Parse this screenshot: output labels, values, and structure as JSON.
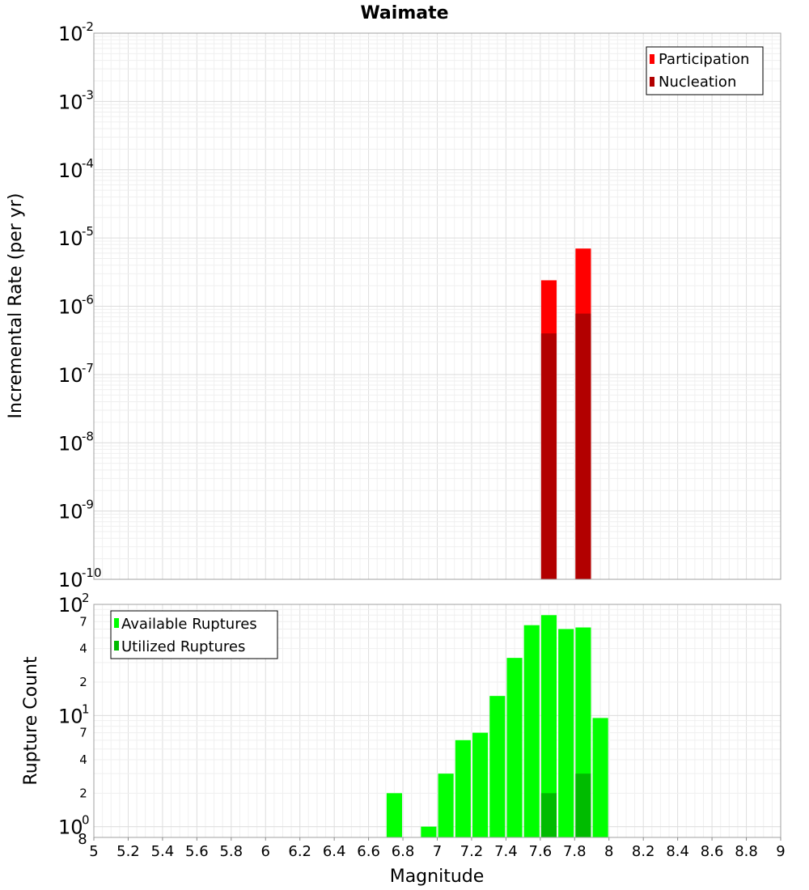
{
  "chart_data": [
    {
      "type": "bar",
      "title": "Waimate",
      "xlabel": "",
      "ylabel": "Incremental Rate (per yr)",
      "yscale": "log",
      "xlim": [
        5,
        9
      ],
      "ylim": [
        1e-10,
        0.01
      ],
      "y_tick_exponents": [
        "-2",
        "-3",
        "-4",
        "-5",
        "-6",
        "-7",
        "-8",
        "-9",
        "-10"
      ],
      "y_tick_base": "10",
      "legend_position": "top-right",
      "bar_width": 0.09,
      "series": [
        {
          "name": "Participation",
          "color": "#ff0000",
          "x": [
            7.65,
            7.85
          ],
          "values": [
            2.4e-06,
            7e-06
          ]
        },
        {
          "name": "Nucleation",
          "color": "#b20000",
          "x": [
            7.65,
            7.85
          ],
          "values": [
            4e-07,
            7.8e-07
          ]
        }
      ]
    },
    {
      "type": "bar",
      "title": "",
      "xlabel": "Magnitude",
      "ylabel": "Rupture Count",
      "yscale": "log",
      "xlim": [
        5,
        9
      ],
      "ylim": [
        0.8,
        100
      ],
      "x_ticks": [
        "5",
        "5.2",
        "5.4",
        "5.6",
        "5.8",
        "6",
        "6.2",
        "6.4",
        "6.6",
        "6.8",
        "7",
        "7.2",
        "7.4",
        "7.6",
        "7.8",
        "8",
        "8.2",
        "8.4",
        "8.6",
        "8.8",
        "9"
      ],
      "y_major_exponents": [
        "0",
        "1",
        "2"
      ],
      "y_tick_base": "10",
      "y_minor_labels": [
        "2",
        "4",
        "7",
        "2",
        "4",
        "7",
        "8"
      ],
      "legend_position": "top-left",
      "bar_width": 0.09,
      "series": [
        {
          "name": "Available Ruptures",
          "color": "#00ff00",
          "x": [
            6.75,
            6.95,
            7.05,
            7.15,
            7.25,
            7.35,
            7.45,
            7.55,
            7.65,
            7.75,
            7.85,
            7.95
          ],
          "values": [
            2,
            1,
            3,
            6,
            7,
            15,
            33,
            65,
            80,
            60,
            62,
            9.5
          ]
        },
        {
          "name": "Utilized Ruptures",
          "color": "#00bb00",
          "x": [
            7.65,
            7.85
          ],
          "values": [
            2,
            3
          ]
        }
      ]
    }
  ]
}
